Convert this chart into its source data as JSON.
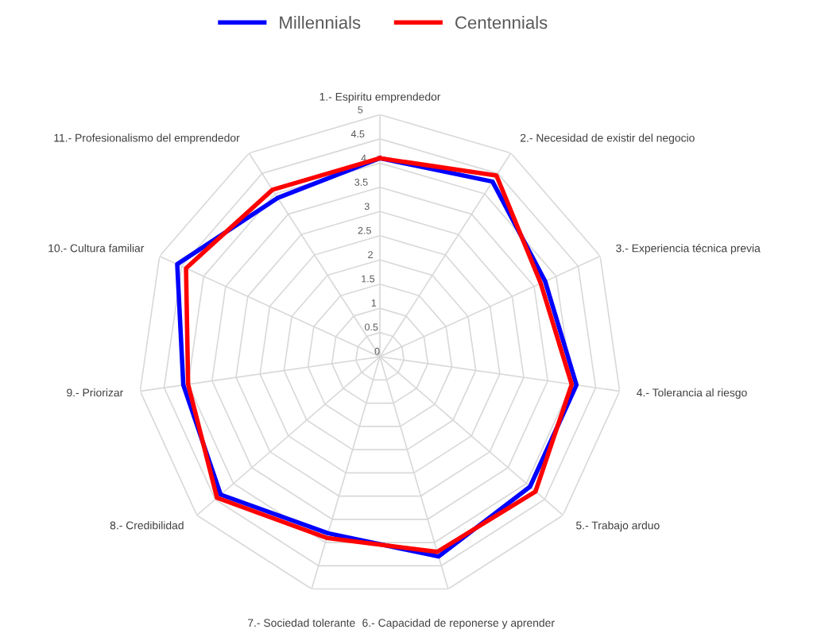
{
  "chart_data": {
    "type": "radar",
    "categories": [
      "1.- Espiritu emprendedor",
      "2.- Necesidad de existir del negocio",
      "3.- Experiencia técnica previa",
      "4.- Tolerancia al riesgo",
      "5.- Trabajo arduo",
      "6.- Capacidad de reponerse y aprender",
      "7.- Sociedad tolerante",
      "8.- Credibilidad",
      "9.- Priorizar",
      "10.- Cultura familiar",
      "11.- Profesionalismo del emprendedor"
    ],
    "series": [
      {
        "name": "Millennials",
        "color": "#0000ff",
        "values": [
          4.1,
          4.3,
          3.75,
          4.1,
          4.1,
          4.3,
          3.8,
          4.35,
          4.1,
          4.6,
          3.9
        ]
      },
      {
        "name": "Centennials",
        "color": "#ff0000",
        "values": [
          4.1,
          4.45,
          3.65,
          4.0,
          4.25,
          4.2,
          3.9,
          4.45,
          4.0,
          4.4,
          4.1
        ]
      }
    ],
    "ylim": [
      0,
      5
    ],
    "yticks": [
      0,
      0.5,
      1,
      1.5,
      2,
      2.5,
      3,
      3.5,
      4,
      4.5,
      5
    ],
    "grid": true,
    "legend": "top"
  }
}
